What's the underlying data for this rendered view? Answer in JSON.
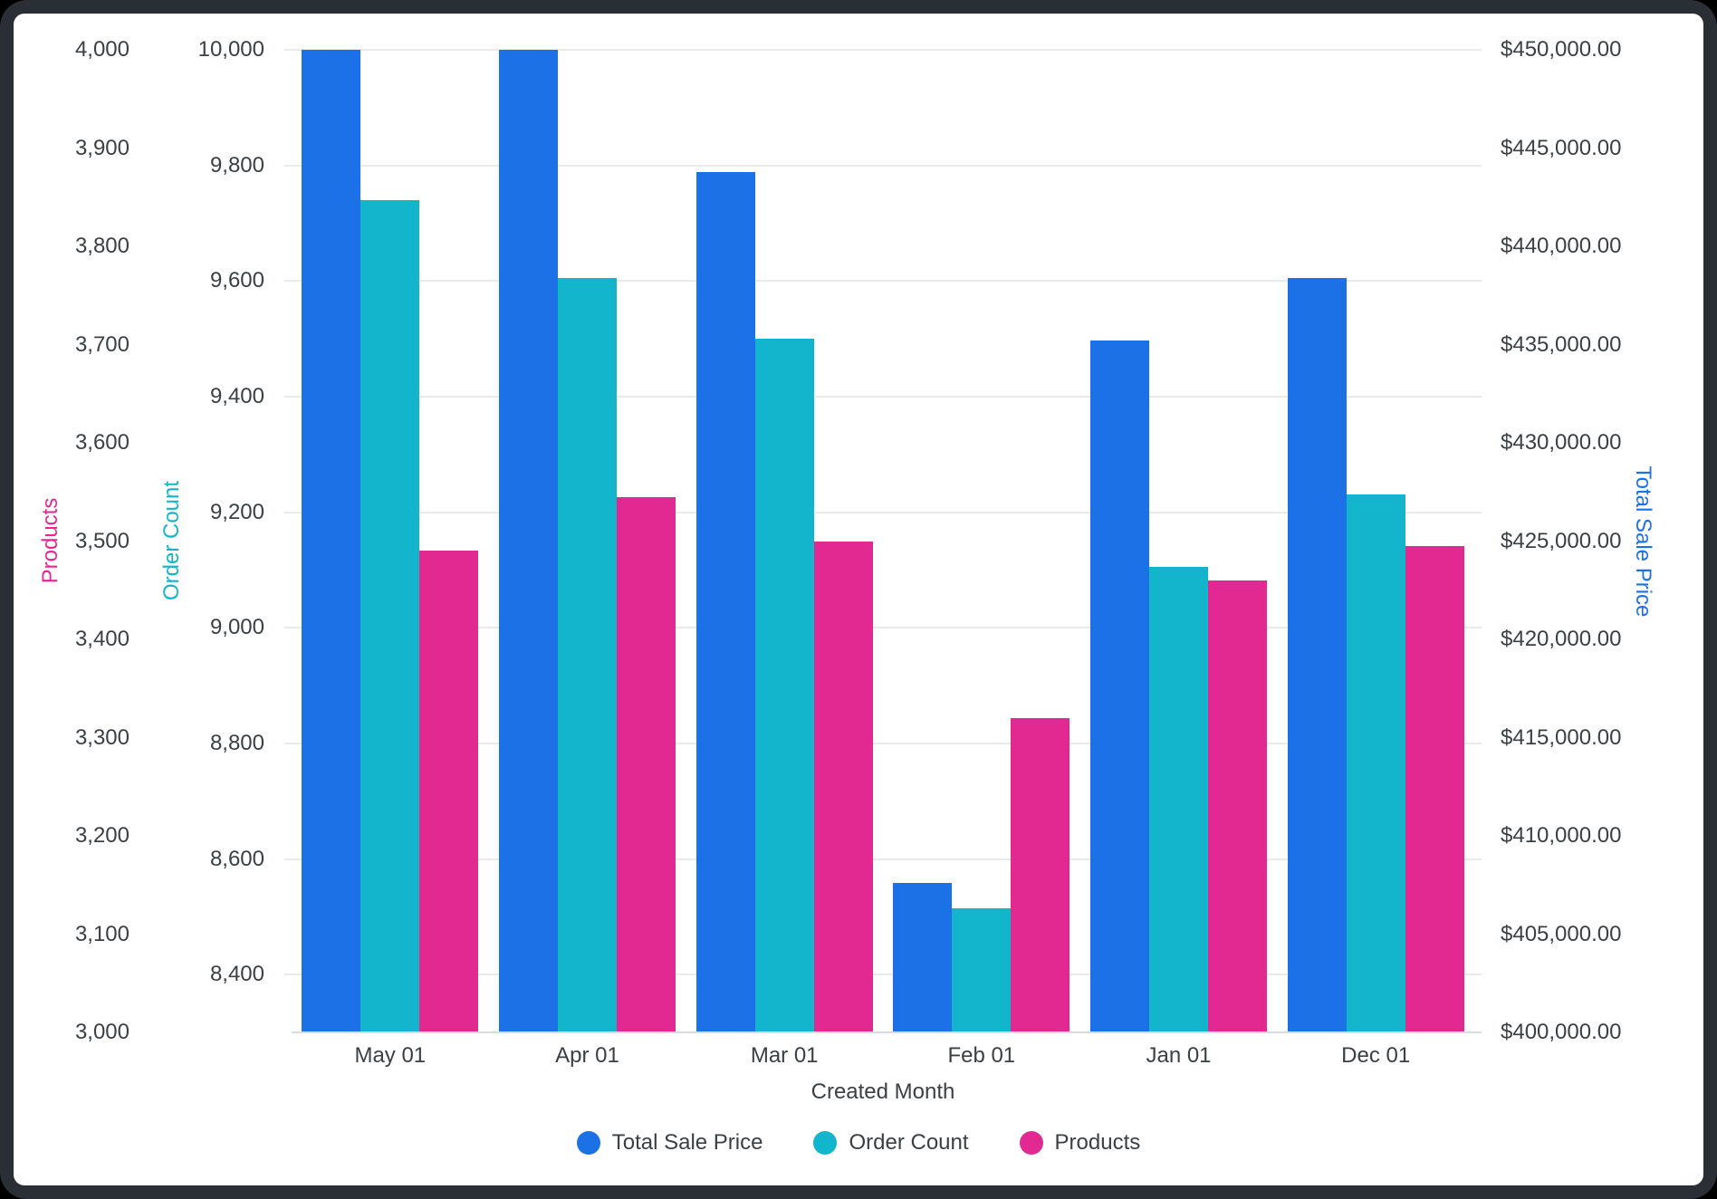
{
  "chart_data": {
    "type": "bar",
    "xlabel": "Created Month",
    "categories": [
      "May 01",
      "Apr 01",
      "Mar 01",
      "Feb 01",
      "Jan 01",
      "Dec 01"
    ],
    "series": [
      {
        "name": "Total Sale Price",
        "axis": "price",
        "color": "#1d71e7",
        "values": [
          450000,
          450000,
          443800,
          407600,
          435200,
          438400
        ]
      },
      {
        "name": "Order Count",
        "axis": "orders",
        "color": "#12b5cb",
        "values": [
          9740,
          9605,
          9500,
          8515,
          9105,
          9230
        ]
      },
      {
        "name": "Products",
        "axis": "products",
        "color": "#e22992",
        "values": [
          3490,
          3545,
          3500,
          3320,
          3460,
          3495
        ]
      }
    ],
    "axes": {
      "products": {
        "title": "Products",
        "color": "#e22992",
        "side": "left",
        "min": 3000,
        "max": 4000,
        "ticks": [
          {
            "value": 3000,
            "label": "3,000"
          },
          {
            "value": 3100,
            "label": "3,100"
          },
          {
            "value": 3200,
            "label": "3,200"
          },
          {
            "value": 3300,
            "label": "3,300"
          },
          {
            "value": 3400,
            "label": "3,400"
          },
          {
            "value": 3500,
            "label": "3,500"
          },
          {
            "value": 3600,
            "label": "3,600"
          },
          {
            "value": 3700,
            "label": "3,700"
          },
          {
            "value": 3800,
            "label": "3,800"
          },
          {
            "value": 3900,
            "label": "3,900"
          },
          {
            "value": 4000,
            "label": "4,000"
          }
        ]
      },
      "orders": {
        "title": "Order Count",
        "color": "#12b5cb",
        "side": "left",
        "gridlines": true,
        "min": 8300,
        "max": 10000,
        "ticks": [
          {
            "value": 8400,
            "label": "8,400"
          },
          {
            "value": 8600,
            "label": "8,600"
          },
          {
            "value": 8800,
            "label": "8,800"
          },
          {
            "value": 9000,
            "label": "9,000"
          },
          {
            "value": 9200,
            "label": "9,200"
          },
          {
            "value": 9400,
            "label": "9,400"
          },
          {
            "value": 9600,
            "label": "9,600"
          },
          {
            "value": 9800,
            "label": "9,800"
          },
          {
            "value": 10000,
            "label": "10,000"
          }
        ]
      },
      "price": {
        "title": "Total Sale Price",
        "color": "#1d71e7",
        "side": "right",
        "min": 400000,
        "max": 450000,
        "ticks": [
          {
            "value": 400000,
            "label": "$400,000.00"
          },
          {
            "value": 405000,
            "label": "$405,000.00"
          },
          {
            "value": 410000,
            "label": "$410,000.00"
          },
          {
            "value": 415000,
            "label": "$415,000.00"
          },
          {
            "value": 420000,
            "label": "$420,000.00"
          },
          {
            "value": 425000,
            "label": "$425,000.00"
          },
          {
            "value": 430000,
            "label": "$430,000.00"
          },
          {
            "value": 435000,
            "label": "$435,000.00"
          },
          {
            "value": 440000,
            "label": "$440,000.00"
          },
          {
            "value": 445000,
            "label": "$445,000.00"
          },
          {
            "value": 450000,
            "label": "$450,000.00"
          }
        ]
      }
    },
    "legend": {
      "position": "bottom",
      "items": [
        "Total Sale Price",
        "Order Count",
        "Products"
      ]
    },
    "grid_color": "#e9eaec",
    "axis_line_color": "#d9dbdd",
    "text_color": "#3c4043"
  }
}
